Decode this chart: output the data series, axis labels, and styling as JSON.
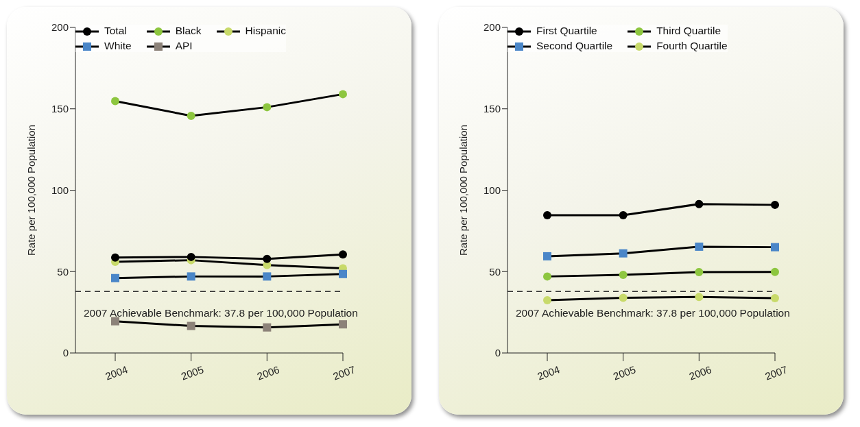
{
  "chart_data": [
    {
      "type": "line",
      "categories": [
        "2004",
        "2005",
        "2006",
        "2007"
      ],
      "ylabel": "Rate per 100,000 Population",
      "ylim": [
        0,
        200
      ],
      "yticks": [
        0,
        50,
        100,
        150,
        200
      ],
      "grid": false,
      "legend": "top left",
      "line_style": "solid",
      "ref_lines": [
        {
          "axis": "y",
          "value": 37.8,
          "label": "2007 Achievable Benchmark: 37.8 per 100,000 Population",
          "line_style": "dashed",
          "color": "#333333"
        }
      ],
      "series": [
        {
          "name": "Total",
          "color": "#000000",
          "marker": "circle",
          "values": [
            58.6,
            59,
            57.8,
            60.5
          ]
        },
        {
          "name": "White",
          "color": "#4a86c8",
          "marker": "square",
          "values": [
            46,
            47,
            47,
            48.5
          ]
        },
        {
          "name": "Black",
          "color": "#8dc63f",
          "marker": "circle",
          "values": [
            154.7,
            145.7,
            151,
            159
          ]
        },
        {
          "name": "API",
          "color": "#8c8279",
          "marker": "square",
          "values": [
            19.5,
            16.6,
            15.7,
            17.6
          ]
        },
        {
          "name": "Hispanic",
          "color": "#c8da6a",
          "marker": "circle",
          "values": [
            56,
            57,
            54,
            52
          ]
        }
      ]
    },
    {
      "type": "line",
      "categories": [
        "2004",
        "2005",
        "2006",
        "2007"
      ],
      "ylabel": "Rate per 100,000 Population",
      "ylim": [
        0,
        200
      ],
      "yticks": [
        0,
        50,
        100,
        150,
        200
      ],
      "grid": false,
      "legend": "top left",
      "line_style": "solid",
      "ref_lines": [
        {
          "axis": "y",
          "value": 37.8,
          "label": "2007 Achievable Benchmark: 37.8 per 100,000 Population",
          "line_style": "dashed",
          "color": "#333333"
        }
      ],
      "series": [
        {
          "name": "First Quartile",
          "color": "#000000",
          "marker": "circle",
          "values": [
            84.6,
            84.6,
            91.5,
            91
          ]
        },
        {
          "name": "Second Quartile",
          "color": "#4a86c8",
          "marker": "square",
          "values": [
            59.4,
            61.2,
            65.3,
            65
          ]
        },
        {
          "name": "Third Quartile",
          "color": "#8dc63f",
          "marker": "circle",
          "values": [
            47,
            48,
            49.7,
            49.8
          ]
        },
        {
          "name": "Fourth Quartile",
          "color": "#c8da6a",
          "marker": "circle",
          "values": [
            32.4,
            33.9,
            34.4,
            33.7
          ]
        }
      ]
    }
  ]
}
